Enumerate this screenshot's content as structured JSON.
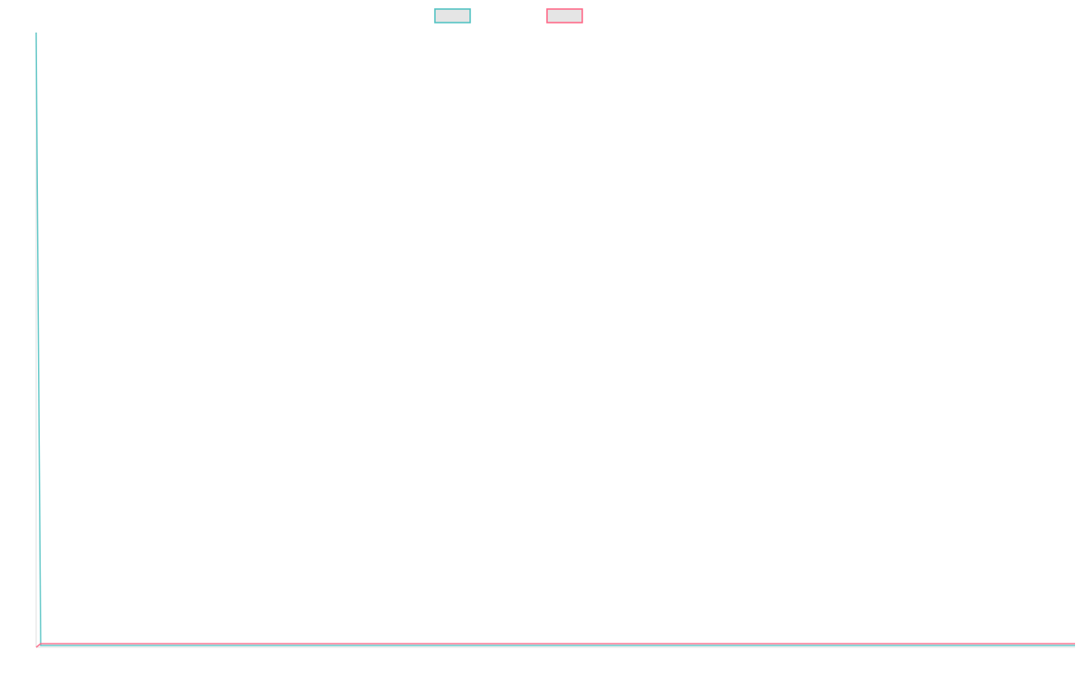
{
  "chart_data": {
    "type": "line",
    "title": "",
    "xlabel": "",
    "ylabel": "",
    "ylim": [
      0,
      100
    ],
    "grid": false,
    "legend": "top",
    "point_count": 230,
    "series": [
      {
        "color": "#4bc0c0",
        "first_value": 100,
        "rest_value": 0
      },
      {
        "color": "#ff6384",
        "first_value": 0,
        "rest_value": 0.3
      }
    ]
  }
}
